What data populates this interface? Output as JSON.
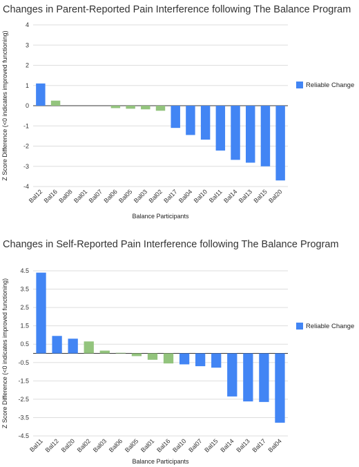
{
  "colors": {
    "reliable": "#4285f4",
    "not_reliable": "#93c47d",
    "grid": "#dddddd",
    "zero": "#333333"
  },
  "chart_data": [
    {
      "type": "bar",
      "title": "Changes in Parent-Reported Pain Interference following The Balance Program",
      "xlabel": "Balance Participants",
      "ylabel": "Z Score Difference (<0 indicates improved functioning)",
      "ylim": [
        -4,
        4
      ],
      "yticks": [
        "4",
        "3",
        "2",
        "1",
        "0",
        "-1",
        "-2",
        "-3",
        "-4"
      ],
      "yticks_values": [
        4,
        3,
        2,
        1,
        0,
        -1,
        -2,
        -3,
        -4
      ],
      "grid": true,
      "legend": {
        "position": "right",
        "entries": [
          "Reliable Change"
        ]
      },
      "categories": [
        "Bal12",
        "Bal16",
        "Bal08",
        "Bal01",
        "Bal07",
        "Bal06",
        "Bal05",
        "Bal03",
        "Bal02",
        "Bal17",
        "Bal04",
        "Bal10",
        "Bal11",
        "Bal14",
        "Bal13",
        "Bal15",
        "Bal20"
      ],
      "values": [
        1.1,
        0.25,
        0.0,
        0.0,
        0.0,
        -0.12,
        -0.15,
        -0.18,
        -0.25,
        -1.1,
        -1.45,
        -1.68,
        -2.22,
        -2.68,
        -2.82,
        -3.0,
        -3.7
      ],
      "reliable": [
        true,
        false,
        false,
        false,
        false,
        false,
        false,
        false,
        false,
        true,
        true,
        true,
        true,
        true,
        true,
        true,
        true
      ]
    },
    {
      "type": "bar",
      "title": "Changes in Self-Reported Pain Interference following The Balance Program",
      "xlabel": "Balance Participants",
      "ylabel": "Z Score Difference (<0 indicates improved functioning)",
      "ylim": [
        -4.5,
        4.5
      ],
      "yticks": [
        "4.5",
        "3.5",
        "2.5",
        "1.5",
        "0.5",
        "-0.5",
        "-1.5",
        "-2.5",
        "-3.5",
        "-4.5"
      ],
      "yticks_values": [
        4.5,
        3.5,
        2.5,
        1.5,
        0.5,
        -0.5,
        -1.5,
        -2.5,
        -3.5,
        -4.5
      ],
      "grid": true,
      "legend": {
        "position": "right",
        "entries": [
          "Reliable Change"
        ]
      },
      "categories": [
        "Bal11",
        "Bal12",
        "Bal20",
        "Bal02",
        "Bal03",
        "Bal06",
        "Bal05",
        "Bal01",
        "Bal16",
        "Bal10",
        "Bal07",
        "Bal15",
        "Bal14",
        "Bal13",
        "Bal17",
        "Bal04"
      ],
      "values": [
        4.4,
        0.95,
        0.8,
        0.65,
        0.15,
        0.03,
        -0.15,
        -0.35,
        -0.55,
        -0.6,
        -0.7,
        -0.78,
        -2.35,
        -2.62,
        -2.65,
        -3.78
      ],
      "reliable": [
        true,
        true,
        true,
        false,
        false,
        false,
        false,
        false,
        false,
        true,
        true,
        true,
        true,
        true,
        true,
        true
      ]
    }
  ]
}
